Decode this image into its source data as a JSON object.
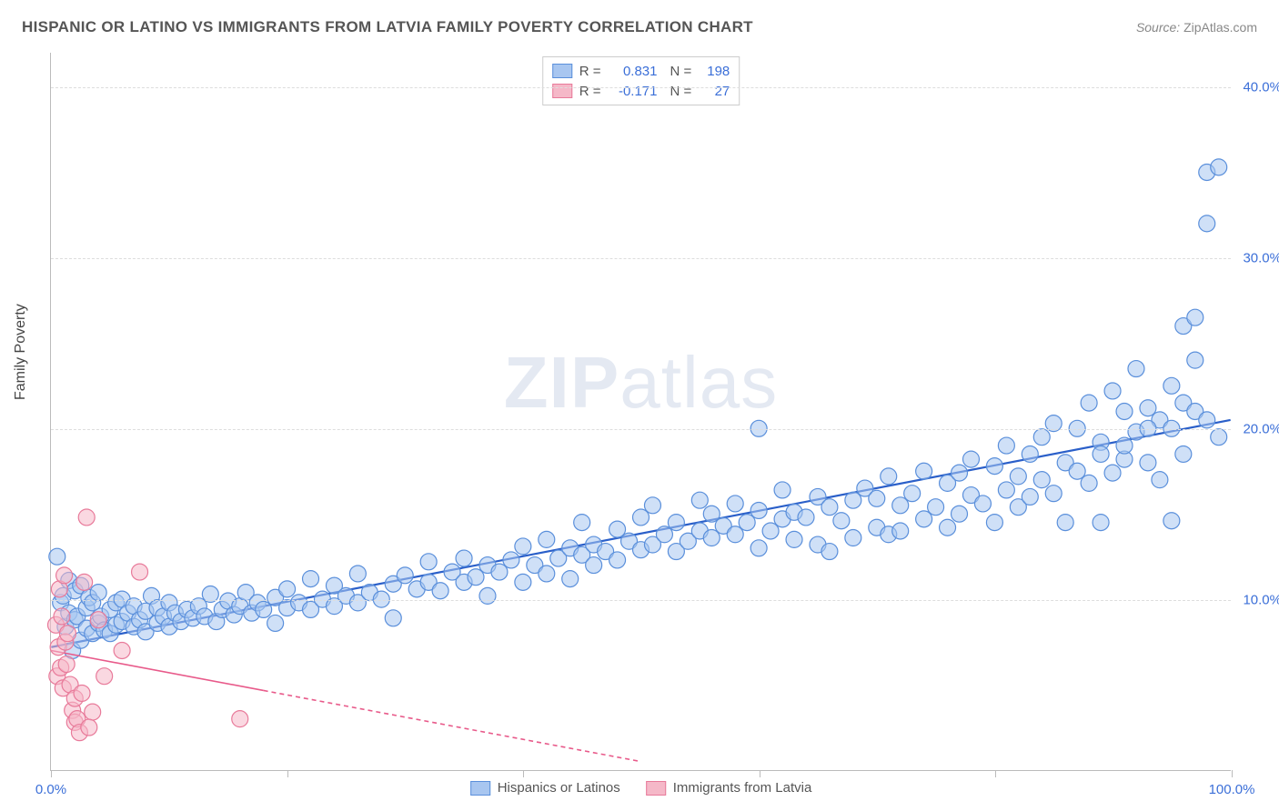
{
  "title": "HISPANIC OR LATINO VS IMMIGRANTS FROM LATVIA FAMILY POVERTY CORRELATION CHART",
  "source_label": "Source:",
  "source_name": "ZipAtlas.com",
  "ylabel": "Family Poverty",
  "watermark_bold": "ZIP",
  "watermark_rest": "atlas",
  "chart": {
    "type": "scatter",
    "xlim": [
      0,
      100
    ],
    "ylim": [
      0,
      42
    ],
    "y_ticks": [
      10,
      20,
      30,
      40
    ],
    "y_tick_labels": [
      "10.0%",
      "20.0%",
      "30.0%",
      "40.0%"
    ],
    "x_ticks": [
      0,
      20,
      40,
      60,
      80,
      100
    ],
    "x_tick_labels_visible": {
      "0": "0.0%",
      "100": "100.0%"
    },
    "background_color": "#ffffff",
    "grid_color": "#dddddd",
    "axis_color": "#bbbbbb",
    "marker_radius": 9,
    "marker_opacity": 0.55,
    "series": [
      {
        "id": "hispanics",
        "label": "Hispanics or Latinos",
        "color_fill": "#a8c6f0",
        "color_stroke": "#5a8fdb",
        "r": "0.831",
        "n": "198",
        "r_color": "#3b6fd8",
        "trend": {
          "x1": 0,
          "y1": 7.2,
          "x2": 100,
          "y2": 20.5,
          "stroke": "#2a5fc9",
          "width": 2.2,
          "dash": ""
        },
        "points": [
          [
            0.5,
            12.5
          ],
          [
            0.8,
            9.8
          ],
          [
            1,
            10.2
          ],
          [
            1.2,
            8.4
          ],
          [
            1.5,
            11.1
          ],
          [
            1.5,
            9.2
          ],
          [
            1.8,
            7.0
          ],
          [
            2,
            8.8
          ],
          [
            2,
            10.5
          ],
          [
            2.2,
            9.0
          ],
          [
            2.5,
            10.8
          ],
          [
            2.5,
            7.6
          ],
          [
            3,
            8.3
          ],
          [
            3,
            9.5
          ],
          [
            3.2,
            10.1
          ],
          [
            3.5,
            8.0
          ],
          [
            3.5,
            9.8
          ],
          [
            4,
            8.6
          ],
          [
            4,
            10.4
          ],
          [
            4.2,
            9.0
          ],
          [
            4.5,
            8.2
          ],
          [
            5,
            9.4
          ],
          [
            5,
            8.0
          ],
          [
            5.5,
            9.8
          ],
          [
            5.5,
            8.5
          ],
          [
            6,
            8.7
          ],
          [
            6,
            10.0
          ],
          [
            6.5,
            9.2
          ],
          [
            7,
            8.4
          ],
          [
            7,
            9.6
          ],
          [
            7.5,
            8.8
          ],
          [
            8,
            9.3
          ],
          [
            8,
            8.1
          ],
          [
            8.5,
            10.2
          ],
          [
            9,
            8.6
          ],
          [
            9,
            9.5
          ],
          [
            9.5,
            9.0
          ],
          [
            10,
            8.4
          ],
          [
            10,
            9.8
          ],
          [
            10.5,
            9.2
          ],
          [
            11,
            8.7
          ],
          [
            11.5,
            9.4
          ],
          [
            12,
            8.9
          ],
          [
            12.5,
            9.6
          ],
          [
            13,
            9.0
          ],
          [
            13.5,
            10.3
          ],
          [
            14,
            8.7
          ],
          [
            14.5,
            9.4
          ],
          [
            15,
            9.9
          ],
          [
            15.5,
            9.1
          ],
          [
            16,
            9.6
          ],
          [
            16.5,
            10.4
          ],
          [
            17,
            9.2
          ],
          [
            17.5,
            9.8
          ],
          [
            18,
            9.4
          ],
          [
            19,
            8.6
          ],
          [
            19,
            10.1
          ],
          [
            20,
            9.5
          ],
          [
            20,
            10.6
          ],
          [
            21,
            9.8
          ],
          [
            22,
            9.4
          ],
          [
            22,
            11.2
          ],
          [
            23,
            10.0
          ],
          [
            24,
            9.6
          ],
          [
            24,
            10.8
          ],
          [
            25,
            10.2
          ],
          [
            26,
            9.8
          ],
          [
            26,
            11.5
          ],
          [
            27,
            10.4
          ],
          [
            28,
            10.0
          ],
          [
            29,
            10.9
          ],
          [
            29,
            8.9
          ],
          [
            30,
            11.4
          ],
          [
            31,
            10.6
          ],
          [
            32,
            11.0
          ],
          [
            32,
            12.2
          ],
          [
            33,
            10.5
          ],
          [
            34,
            11.6
          ],
          [
            35,
            11.0
          ],
          [
            35,
            12.4
          ],
          [
            36,
            11.3
          ],
          [
            37,
            12.0
          ],
          [
            37,
            10.2
          ],
          [
            38,
            11.6
          ],
          [
            39,
            12.3
          ],
          [
            40,
            11.0
          ],
          [
            40,
            13.1
          ],
          [
            41,
            12.0
          ],
          [
            42,
            11.5
          ],
          [
            42,
            13.5
          ],
          [
            43,
            12.4
          ],
          [
            44,
            13.0
          ],
          [
            44,
            11.2
          ],
          [
            45,
            12.6
          ],
          [
            45,
            14.5
          ],
          [
            46,
            12.0
          ],
          [
            46,
            13.2
          ],
          [
            47,
            12.8
          ],
          [
            48,
            14.1
          ],
          [
            48,
            12.3
          ],
          [
            49,
            13.4
          ],
          [
            50,
            12.9
          ],
          [
            50,
            14.8
          ],
          [
            51,
            13.2
          ],
          [
            51,
            15.5
          ],
          [
            52,
            13.8
          ],
          [
            53,
            12.8
          ],
          [
            53,
            14.5
          ],
          [
            54,
            13.4
          ],
          [
            55,
            14.0
          ],
          [
            55,
            15.8
          ],
          [
            56,
            13.6
          ],
          [
            56,
            15.0
          ],
          [
            57,
            14.3
          ],
          [
            58,
            13.8
          ],
          [
            58,
            15.6
          ],
          [
            59,
            14.5
          ],
          [
            60,
            20.0
          ],
          [
            60,
            13.0
          ],
          [
            60,
            15.2
          ],
          [
            61,
            14.0
          ],
          [
            62,
            14.7
          ],
          [
            62,
            16.4
          ],
          [
            63,
            13.5
          ],
          [
            63,
            15.1
          ],
          [
            64,
            14.8
          ],
          [
            65,
            16.0
          ],
          [
            65,
            13.2
          ],
          [
            66,
            15.4
          ],
          [
            66,
            12.8
          ],
          [
            67,
            14.6
          ],
          [
            68,
            15.8
          ],
          [
            68,
            13.6
          ],
          [
            69,
            16.5
          ],
          [
            70,
            14.2
          ],
          [
            70,
            15.9
          ],
          [
            71,
            17.2
          ],
          [
            71,
            13.8
          ],
          [
            72,
            15.5
          ],
          [
            72,
            14.0
          ],
          [
            73,
            16.2
          ],
          [
            74,
            14.7
          ],
          [
            74,
            17.5
          ],
          [
            75,
            15.4
          ],
          [
            76,
            16.8
          ],
          [
            76,
            14.2
          ],
          [
            77,
            17.4
          ],
          [
            77,
            15.0
          ],
          [
            78,
            16.1
          ],
          [
            78,
            18.2
          ],
          [
            79,
            15.6
          ],
          [
            80,
            17.8
          ],
          [
            80,
            14.5
          ],
          [
            81,
            16.4
          ],
          [
            81,
            19.0
          ],
          [
            82,
            17.2
          ],
          [
            82,
            15.4
          ],
          [
            83,
            18.5
          ],
          [
            83,
            16.0
          ],
          [
            84,
            19.5
          ],
          [
            84,
            17.0
          ],
          [
            85,
            16.2
          ],
          [
            85,
            20.3
          ],
          [
            86,
            14.5
          ],
          [
            86,
            18.0
          ],
          [
            87,
            20.0
          ],
          [
            87,
            17.5
          ],
          [
            88,
            16.8
          ],
          [
            88,
            21.5
          ],
          [
            89,
            19.2
          ],
          [
            89,
            14.5
          ],
          [
            90,
            22.2
          ],
          [
            90,
            17.4
          ],
          [
            91,
            21.0
          ],
          [
            91,
            18.2
          ],
          [
            92,
            19.8
          ],
          [
            92,
            23.5
          ],
          [
            93,
            18.0
          ],
          [
            93,
            21.2
          ],
          [
            94,
            20.5
          ],
          [
            94,
            17.0
          ],
          [
            95,
            20.0
          ],
          [
            95,
            14.6
          ],
          [
            96,
            21.5
          ],
          [
            96,
            26.0
          ],
          [
            96,
            18.5
          ],
          [
            97,
            21.0
          ],
          [
            97,
            26.5
          ],
          [
            98,
            32.0
          ],
          [
            98,
            20.5
          ],
          [
            98,
            35.0
          ],
          [
            99,
            35.3
          ],
          [
            99,
            19.5
          ],
          [
            97,
            24.0
          ],
          [
            95,
            22.5
          ],
          [
            93,
            20.0
          ],
          [
            91,
            19.0
          ],
          [
            89,
            18.5
          ]
        ]
      },
      {
        "id": "latvia",
        "label": "Immigrants from Latvia",
        "color_fill": "#f5b8c8",
        "color_stroke": "#e87a9a",
        "r": "-0.171",
        "n": "27",
        "r_color": "#3b6fd8",
        "trend": {
          "x1": 0,
          "y1": 7.0,
          "x2": 50,
          "y2": 0.5,
          "stroke": "#e85a8a",
          "width": 1.6,
          "dash": "5,4",
          "solid_until_x": 18
        },
        "points": [
          [
            0.4,
            8.5
          ],
          [
            0.5,
            5.5
          ],
          [
            0.6,
            7.2
          ],
          [
            0.7,
            10.6
          ],
          [
            0.8,
            6.0
          ],
          [
            0.9,
            9.0
          ],
          [
            1.0,
            4.8
          ],
          [
            1.1,
            11.4
          ],
          [
            1.2,
            7.5
          ],
          [
            1.3,
            6.2
          ],
          [
            1.4,
            8.0
          ],
          [
            1.6,
            5.0
          ],
          [
            1.8,
            3.5
          ],
          [
            2.0,
            2.8
          ],
          [
            2.0,
            4.2
          ],
          [
            2.2,
            3.0
          ],
          [
            2.4,
            2.2
          ],
          [
            2.6,
            4.5
          ],
          [
            2.8,
            11.0
          ],
          [
            3.0,
            14.8
          ],
          [
            3.5,
            3.4
          ],
          [
            4.0,
            8.8
          ],
          [
            4.5,
            5.5
          ],
          [
            6.0,
            7.0
          ],
          [
            7.5,
            11.6
          ],
          [
            16.0,
            3.0
          ],
          [
            3.2,
            2.5
          ]
        ]
      }
    ]
  },
  "legend_top": {
    "r_label": "R =",
    "n_label": "N ="
  }
}
